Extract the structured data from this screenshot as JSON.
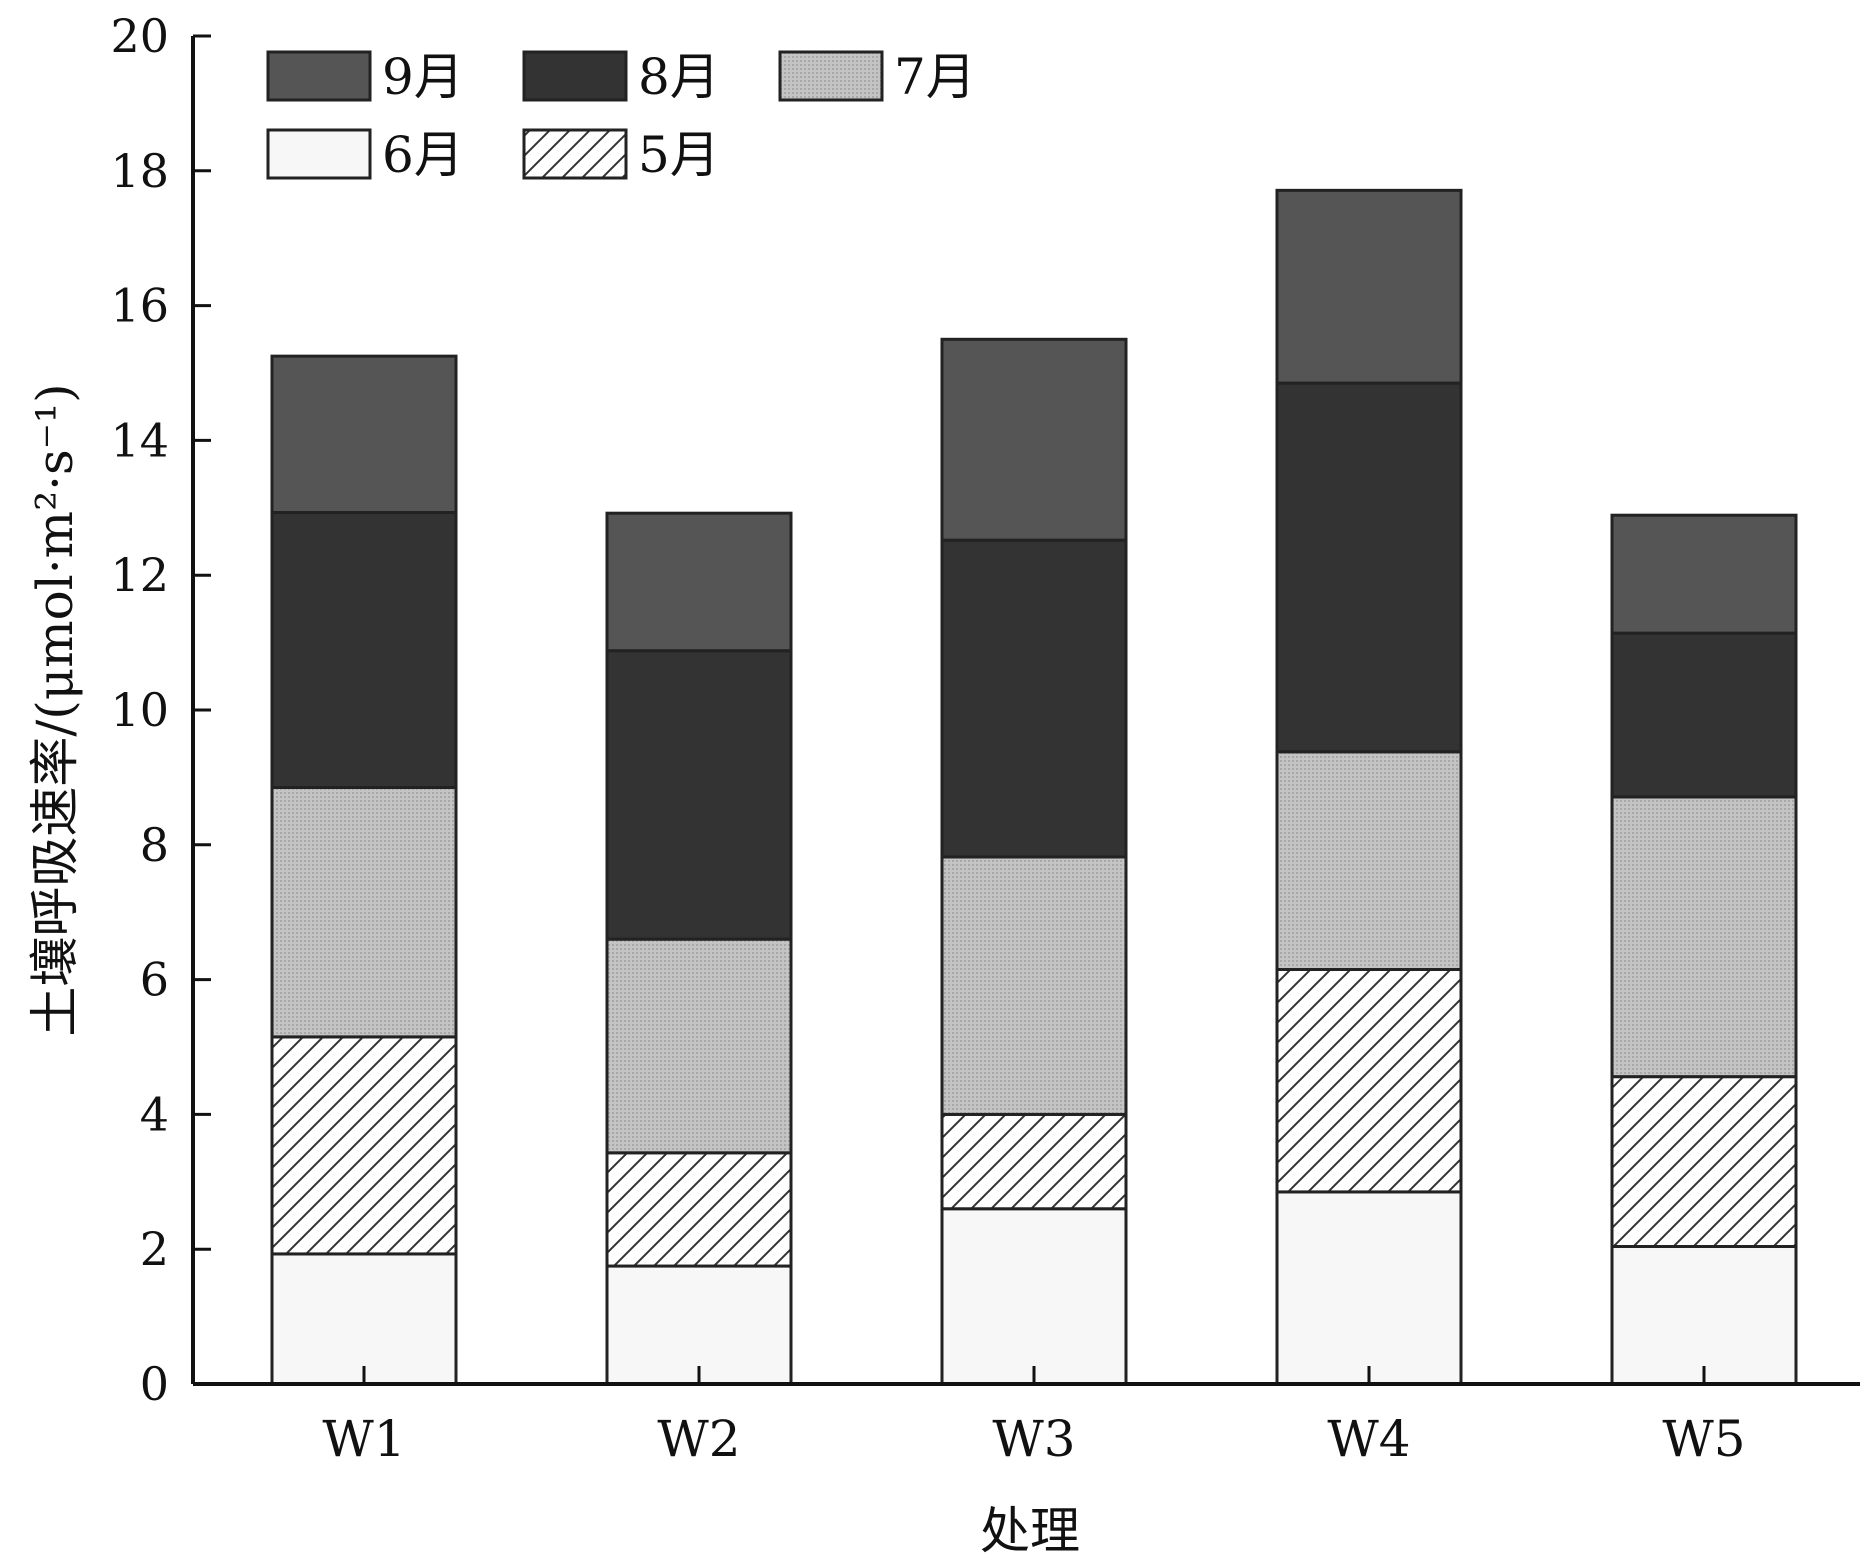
{
  "chart_data": {
    "type": "bar",
    "stacked": true,
    "categories": [
      "W1",
      "W2",
      "W3",
      "W4",
      "W5"
    ],
    "series": [
      {
        "name": "6月",
        "values": [
          1.93,
          1.75,
          2.6,
          2.85,
          2.04
        ],
        "pattern": "light",
        "color": "#f7f7f7"
      },
      {
        "name": "5月",
        "values": [
          3.22,
          1.68,
          1.4,
          3.3,
          2.52
        ],
        "pattern": "hatch",
        "color": "#ffffff"
      },
      {
        "name": "7月",
        "values": [
          3.7,
          3.17,
          3.82,
          3.23,
          4.15
        ],
        "pattern": "dots",
        "color": "#bdbdbd"
      },
      {
        "name": "8月",
        "values": [
          4.08,
          4.28,
          4.7,
          5.47,
          2.43
        ],
        "pattern": "solid",
        "color": "#333333"
      },
      {
        "name": "9月",
        "values": [
          2.32,
          2.04,
          2.98,
          2.86,
          1.75
        ],
        "pattern": "solid",
        "color": "#555555"
      }
    ],
    "legend_order": [
      "9月",
      "8月",
      "7月",
      "6月",
      "5月"
    ],
    "title": "",
    "xlabel": "处理",
    "ylabel": "土壤呼吸速率/(μmol·m²·s⁻¹)",
    "ylim": [
      0,
      20
    ],
    "yticks": [
      "0",
      "2",
      "4",
      "6",
      "8",
      "10",
      "12",
      "14",
      "16",
      "18",
      "20"
    ],
    "grid": false,
    "legend_position": "top-left"
  }
}
